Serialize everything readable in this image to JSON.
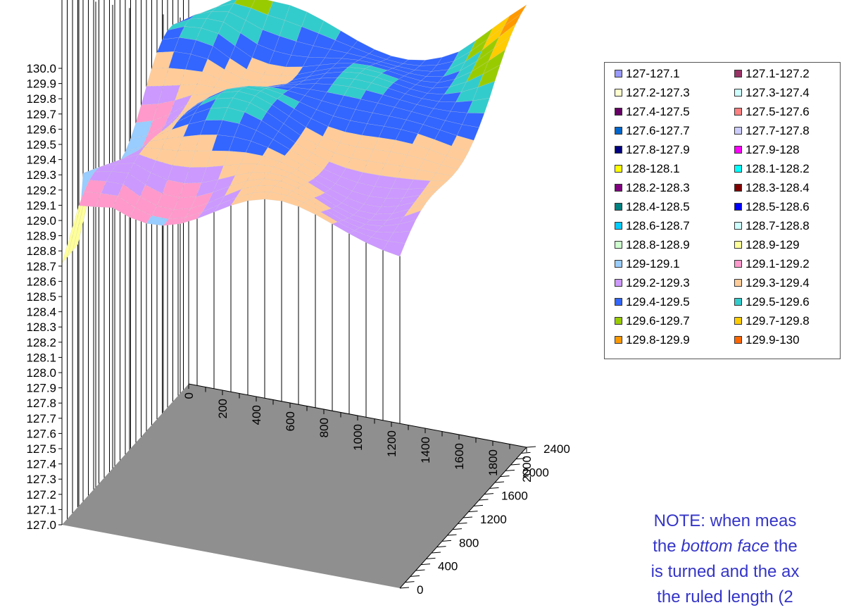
{
  "chart_data": {
    "type": "surface3d",
    "z_axis": {
      "min": 127.0,
      "max": 130.0,
      "step": 0.1,
      "tick_labels": [
        "127.0",
        "127.1",
        "127.2",
        "127.3",
        "127.4",
        "127.5",
        "127.6",
        "127.7",
        "127.8",
        "127.9",
        "128.0",
        "128.1",
        "128.2",
        "128.3",
        "128.4",
        "128.5",
        "128.6",
        "128.7",
        "128.8",
        "128.9",
        "129.0",
        "129.1",
        "129.2",
        "129.3",
        "129.4",
        "129.5",
        "129.6",
        "129.7",
        "129.8",
        "129.9",
        "130.0"
      ]
    },
    "x_axis": {
      "min": 0,
      "max": 2000,
      "tick_labels": [
        "0",
        "200",
        "400",
        "600",
        "800",
        "1000",
        "1200",
        "1400",
        "1600",
        "1800",
        "2000"
      ]
    },
    "y_axis": {
      "min": 0,
      "max": 2400,
      "tick_labels": [
        "0",
        "400",
        "800",
        "1200",
        "1600",
        "2000",
        "2400"
      ]
    },
    "floor_color": "#8f8f8f",
    "surface_range_z": [
      128.7,
      130.0
    ],
    "legend_placement": "right",
    "legend": [
      {
        "label": "127-127.1",
        "color": "#9999ff"
      },
      {
        "label": "127.1-127.2",
        "color": "#993366"
      },
      {
        "label": "127.2-127.3",
        "color": "#ffffcc"
      },
      {
        "label": "127.3-127.4",
        "color": "#ccffff"
      },
      {
        "label": "127.4-127.5",
        "color": "#660066"
      },
      {
        "label": "127.5-127.6",
        "color": "#ff8080"
      },
      {
        "label": "127.6-127.7",
        "color": "#0066cc"
      },
      {
        "label": "127.7-127.8",
        "color": "#ccccff"
      },
      {
        "label": "127.8-127.9",
        "color": "#000080"
      },
      {
        "label": "127.9-128",
        "color": "#ff00ff"
      },
      {
        "label": "128-128.1",
        "color": "#ffff00"
      },
      {
        "label": "128.1-128.2",
        "color": "#00ffff"
      },
      {
        "label": "128.2-128.3",
        "color": "#800080"
      },
      {
        "label": "128.3-128.4",
        "color": "#800000"
      },
      {
        "label": "128.4-128.5",
        "color": "#008080"
      },
      {
        "label": "128.5-128.6",
        "color": "#0000ff"
      },
      {
        "label": "128.6-128.7",
        "color": "#00ccff"
      },
      {
        "label": "128.7-128.8",
        "color": "#ccffff"
      },
      {
        "label": "128.8-128.9",
        "color": "#ccffcc"
      },
      {
        "label": "128.9-129",
        "color": "#ffff99"
      },
      {
        "label": "129-129.1",
        "color": "#99ccff"
      },
      {
        "label": "129.1-129.2",
        "color": "#ff99cc"
      },
      {
        "label": "129.2-129.3",
        "color": "#cc99ff"
      },
      {
        "label": "129.3-129.4",
        "color": "#ffcc99"
      },
      {
        "label": "129.4-129.5",
        "color": "#3366ff"
      },
      {
        "label": "129.5-129.6",
        "color": "#33cccc"
      },
      {
        "label": "129.6-129.7",
        "color": "#99cc00"
      },
      {
        "label": "129.7-129.8",
        "color": "#ffcc00"
      },
      {
        "label": "129.8-129.9",
        "color": "#ff9900"
      },
      {
        "label": "129.9-130",
        "color": "#ff6600"
      }
    ]
  },
  "note": {
    "line1": "NOTE: when meas",
    "line2_italic": "bottom face",
    "line2_before": "the ",
    "line2_after": " the",
    "line3": "is turned and the ax",
    "line4": "the ruled length (2"
  }
}
